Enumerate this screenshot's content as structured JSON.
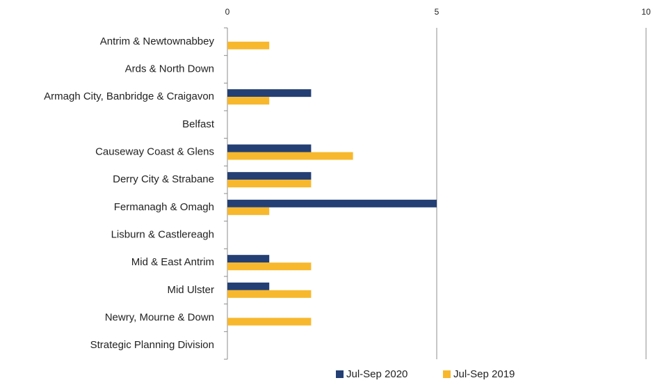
{
  "chart_data": {
    "type": "bar",
    "orientation": "horizontal",
    "categories": [
      "Antrim & Newtownabbey",
      "Ards & North Down",
      "Armagh City, Banbridge & Craigavon",
      "Belfast",
      "Causeway Coast & Glens",
      "Derry City & Strabane",
      "Fermanagh & Omagh",
      "Lisburn & Castlereagh",
      "Mid & East Antrim",
      "Mid Ulster",
      "Newry, Mourne & Down",
      "Strategic Planning Division"
    ],
    "series": [
      {
        "name": "Jul-Sep 2020",
        "color": "#243f73",
        "values": [
          0,
          0,
          2,
          0,
          2,
          2,
          5,
          0,
          1,
          1,
          0,
          0
        ]
      },
      {
        "name": "Jul-Sep 2019",
        "color": "#f7b82d",
        "values": [
          1,
          0,
          1,
          0,
          3,
          2,
          1,
          0,
          2,
          2,
          2,
          0
        ]
      }
    ],
    "xlim": [
      0,
      10
    ],
    "xticks": [
      0,
      5,
      10
    ],
    "grid": true,
    "legend_position": "bottom"
  }
}
